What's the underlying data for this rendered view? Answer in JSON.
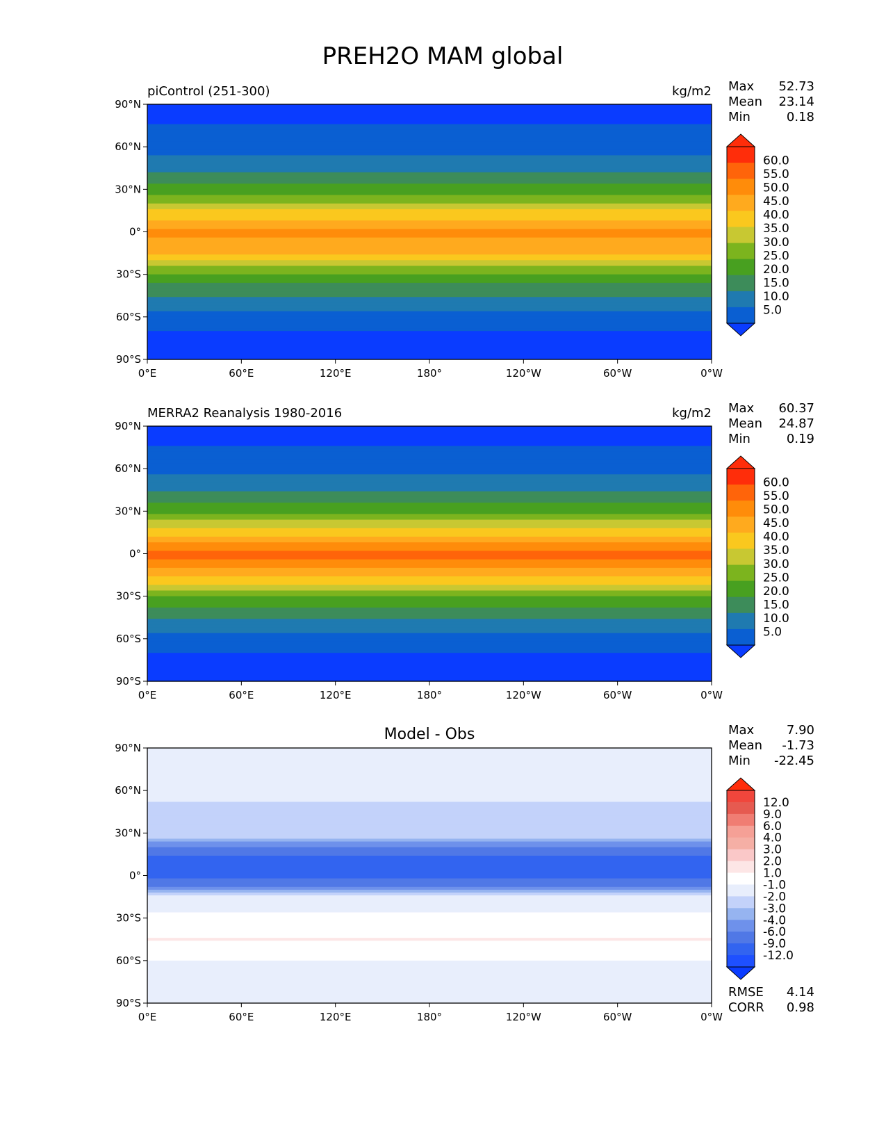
{
  "figure": {
    "title": "PREH2O MAM global"
  },
  "axes": {
    "x_ticks": [
      "0°E",
      "60°E",
      "120°E",
      "180°",
      "120°W",
      "60°W",
      "0°W"
    ],
    "y_ticks": [
      "90°N",
      "60°N",
      "30°N",
      "0°",
      "30°S",
      "60°S",
      "90°S"
    ]
  },
  "palettes": {
    "absolute": [
      "#0a3cff",
      "#0a5fd2",
      "#1f7ab0",
      "#3d8c5a",
      "#48a020",
      "#7cb41e",
      "#c8c832",
      "#fac81e",
      "#ffaa1e",
      "#ff8c0a",
      "#ff640a",
      "#ff2d0a",
      "#ff2d0a"
    ],
    "difference": [
      "#0a3cff",
      "#1e50ff",
      "#3264f0",
      "#5078e6",
      "#6e91eb",
      "#96b4f0",
      "#c3d2fa",
      "#e8eefc",
      "#ffffff",
      "#fde6e6",
      "#fac8c8",
      "#f5afa5",
      "#f5a096",
      "#f07d73",
      "#e65a50",
      "#f0463c",
      "#ff2d0a"
    ]
  },
  "panels": [
    {
      "left_title": "piControl (251-300)",
      "units": "kg/m2",
      "center_title": "",
      "stats": [
        {
          "label": "Max",
          "value": "52.73"
        },
        {
          "label": "Mean",
          "value": "23.14"
        },
        {
          "label": "Min",
          "value": "0.18"
        }
      ],
      "colorbar_labels": [
        "60.0",
        "55.0",
        "50.0",
        "45.0",
        "40.0",
        "35.0",
        "30.0",
        "25.0",
        "20.0",
        "15.0",
        "10.0",
        "5.0"
      ],
      "palette": "absolute",
      "bottom_stats": []
    },
    {
      "left_title": "MERRA2 Reanalysis 1980-2016",
      "units": "kg/m2",
      "center_title": "",
      "stats": [
        {
          "label": "Max",
          "value": "60.37"
        },
        {
          "label": "Mean",
          "value": "24.87"
        },
        {
          "label": "Min",
          "value": "0.19"
        }
      ],
      "colorbar_labels": [
        "60.0",
        "55.0",
        "50.0",
        "45.0",
        "40.0",
        "35.0",
        "30.0",
        "25.0",
        "20.0",
        "15.0",
        "10.0",
        "5.0"
      ],
      "palette": "absolute",
      "bottom_stats": []
    },
    {
      "left_title": "",
      "units": "",
      "center_title": "Model - Obs",
      "stats": [
        {
          "label": "Max",
          "value": "7.90"
        },
        {
          "label": "Mean",
          "value": "-1.73"
        },
        {
          "label": "Min",
          "value": "-22.45"
        }
      ],
      "colorbar_labels": [
        "12.0",
        "9.0",
        "6.0",
        "4.0",
        "3.0",
        "2.0",
        "1.0",
        "-1.0",
        "-2.0",
        "-3.0",
        "-4.0",
        "-6.0",
        "-9.0",
        "-12.0"
      ],
      "palette": "difference",
      "bottom_stats": [
        {
          "label": "RMSE",
          "value": "4.14"
        },
        {
          "label": "CORR",
          "value": "0.98"
        }
      ]
    }
  ],
  "chart_data": [
    {
      "type": "heatmap",
      "title": "piControl (251-300)",
      "units": "kg/m2",
      "x_range": [
        "0°E",
        "0°W"
      ],
      "y_range": [
        "90°S",
        "90°N"
      ],
      "levels": [
        5.0,
        10.0,
        15.0,
        20.0,
        25.0,
        30.0,
        35.0,
        40.0,
        45.0,
        50.0,
        55.0,
        60.0
      ],
      "latitude_profile": {
        "lat": [
          90,
          75,
          60,
          45,
          30,
          15,
          0,
          -15,
          -30,
          -45,
          -60,
          -75,
          -90
        ],
        "value": [
          3,
          5,
          8,
          13,
          22,
          35,
          47,
          40,
          24,
          15,
          8,
          3,
          2
        ]
      },
      "stats": {
        "max": 52.73,
        "mean": 23.14,
        "min": 0.18
      }
    },
    {
      "type": "heatmap",
      "title": "MERRA2 Reanalysis 1980-2016",
      "units": "kg/m2",
      "x_range": [
        "0°E",
        "0°W"
      ],
      "y_range": [
        "90°S",
        "90°N"
      ],
      "levels": [
        5.0,
        10.0,
        15.0,
        20.0,
        25.0,
        30.0,
        35.0,
        40.0,
        45.0,
        50.0,
        55.0,
        60.0
      ],
      "latitude_profile": {
        "lat": [
          90,
          75,
          60,
          45,
          30,
          15,
          0,
          -15,
          -30,
          -45,
          -60,
          -75,
          -90
        ],
        "value": [
          3,
          5,
          8,
          14,
          23,
          38,
          52,
          42,
          25,
          15,
          8,
          3,
          2
        ]
      },
      "stats": {
        "max": 60.37,
        "mean": 24.87,
        "min": 0.19
      }
    },
    {
      "type": "heatmap",
      "title": "Model - Obs",
      "x_range": [
        "0°E",
        "0°W"
      ],
      "y_range": [
        "90°S",
        "90°N"
      ],
      "levels": [
        -12.0,
        -9.0,
        -6.0,
        -4.0,
        -3.0,
        -2.0,
        -1.0,
        1.0,
        2.0,
        3.0,
        4.0,
        6.0,
        9.0,
        12.0
      ],
      "latitude_profile": {
        "lat": [
          90,
          75,
          60,
          45,
          30,
          15,
          0,
          -15,
          -30,
          -45,
          -60,
          -75,
          -90
        ],
        "value": [
          0,
          0,
          -0.5,
          -1.5,
          -1,
          -6,
          -7,
          -1,
          1.5,
          2,
          1,
          0,
          0.5
        ]
      },
      "stats": {
        "max": 7.9,
        "mean": -1.73,
        "min": -22.45,
        "rmse": 4.14,
        "corr": 0.98
      }
    }
  ]
}
